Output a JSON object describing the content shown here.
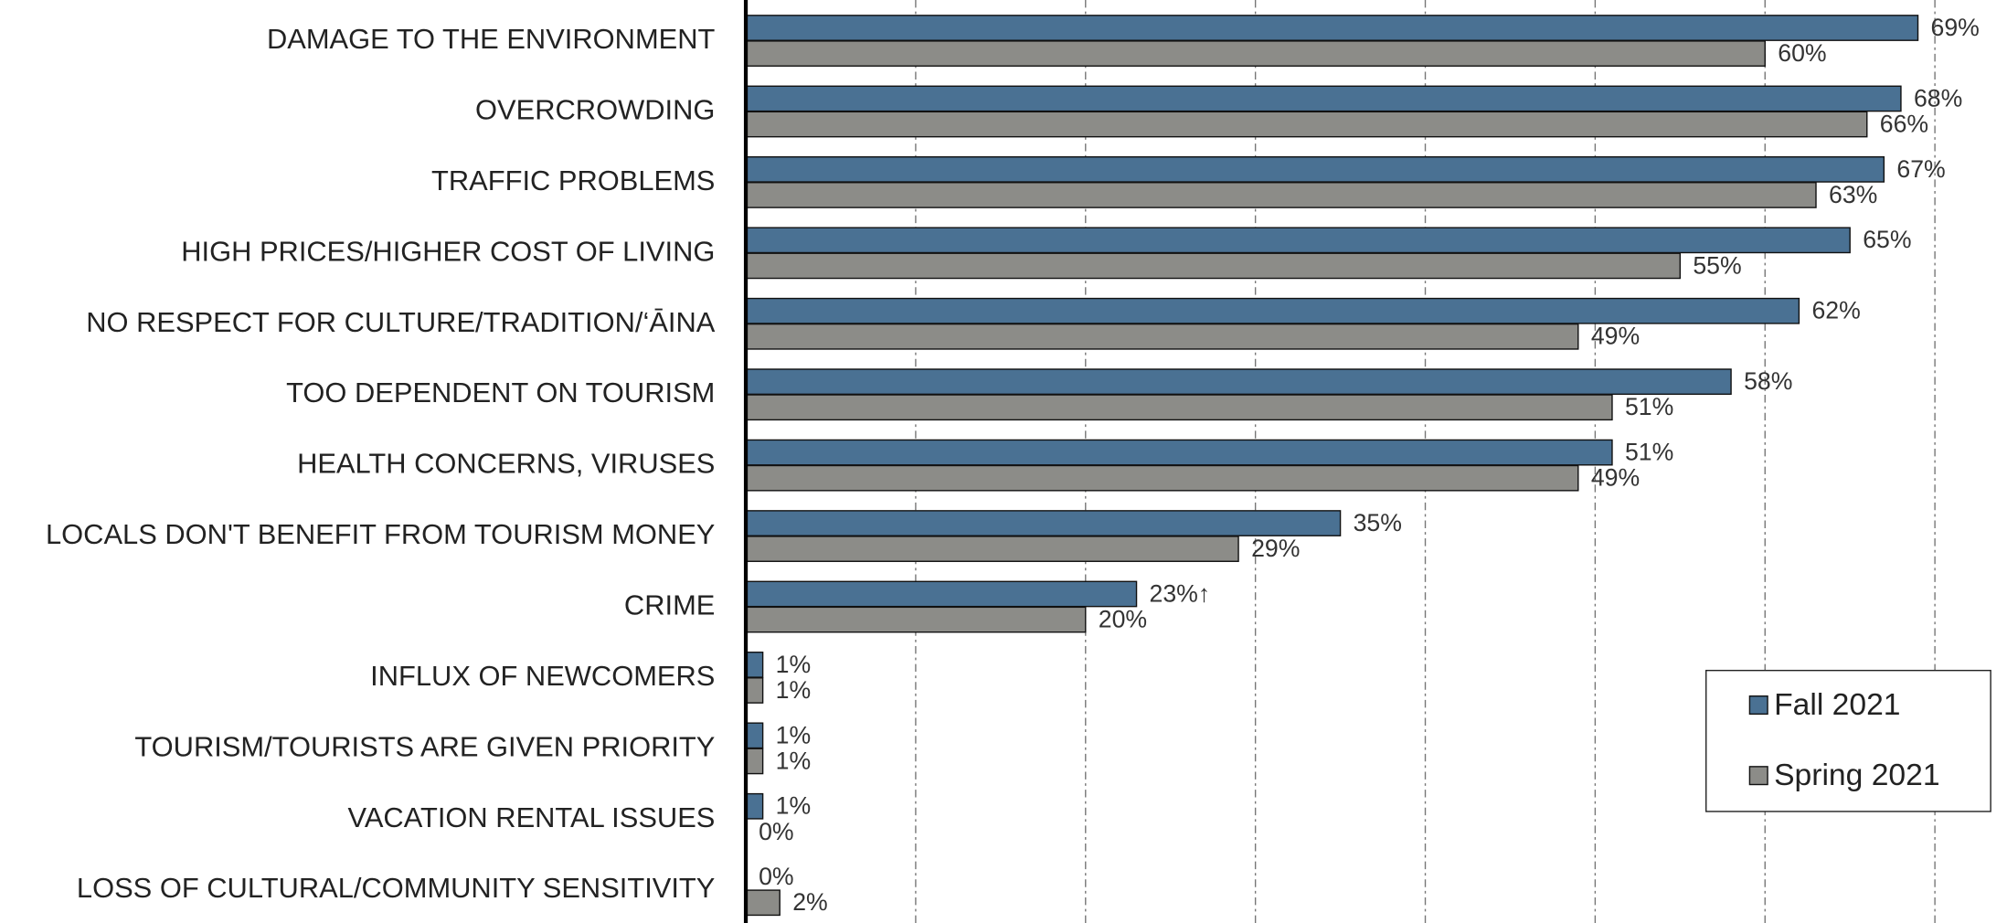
{
  "chart_data": {
    "type": "bar",
    "orientation": "horizontal",
    "categories": [
      "DAMAGE TO THE ENVIRONMENT",
      "OVERCROWDING",
      "TRAFFIC PROBLEMS",
      "HIGH PRICES/HIGHER COST OF LIVING",
      "NO RESPECT FOR CULTURE/TRADITION/‘ĀINA",
      "TOO DEPENDENT ON TOURISM",
      "HEALTH CONCERNS, VIRUSES",
      "LOCALS DON'T BENEFIT FROM TOURISM MONEY",
      "CRIME",
      "INFLUX OF NEWCOMERS",
      "TOURISM/TOURISTS ARE GIVEN PRIORITY",
      "VACATION RENTAL ISSUES",
      "LOSS OF CULTURAL/COMMUNITY SENSITIVITY"
    ],
    "series": [
      {
        "name": "Fall 2021",
        "color": "#4a7193",
        "values": [
          69,
          68,
          67,
          65,
          62,
          58,
          51,
          35,
          23,
          1,
          1,
          1,
          0
        ],
        "value_labels": [
          "69%",
          "68%",
          "67%",
          "65%",
          "62%",
          "58%",
          "51%",
          "35%",
          "23%↑",
          "1%",
          "1%",
          "1%",
          "0%"
        ]
      },
      {
        "name": "Spring 2021",
        "color": "#8c8c88",
        "values": [
          60,
          66,
          63,
          55,
          49,
          51,
          49,
          29,
          20,
          1,
          1,
          0,
          2
        ],
        "value_labels": [
          "60%",
          "66%",
          "63%",
          "55%",
          "49%",
          "51%",
          "49%",
          "29%",
          "20%",
          "1%",
          "1%",
          "0%",
          "2%"
        ]
      }
    ],
    "xlim": [
      0,
      74
    ],
    "xticks": [
      10,
      20,
      30,
      40,
      50,
      60,
      70
    ],
    "grid": true,
    "legend": "lower right"
  }
}
